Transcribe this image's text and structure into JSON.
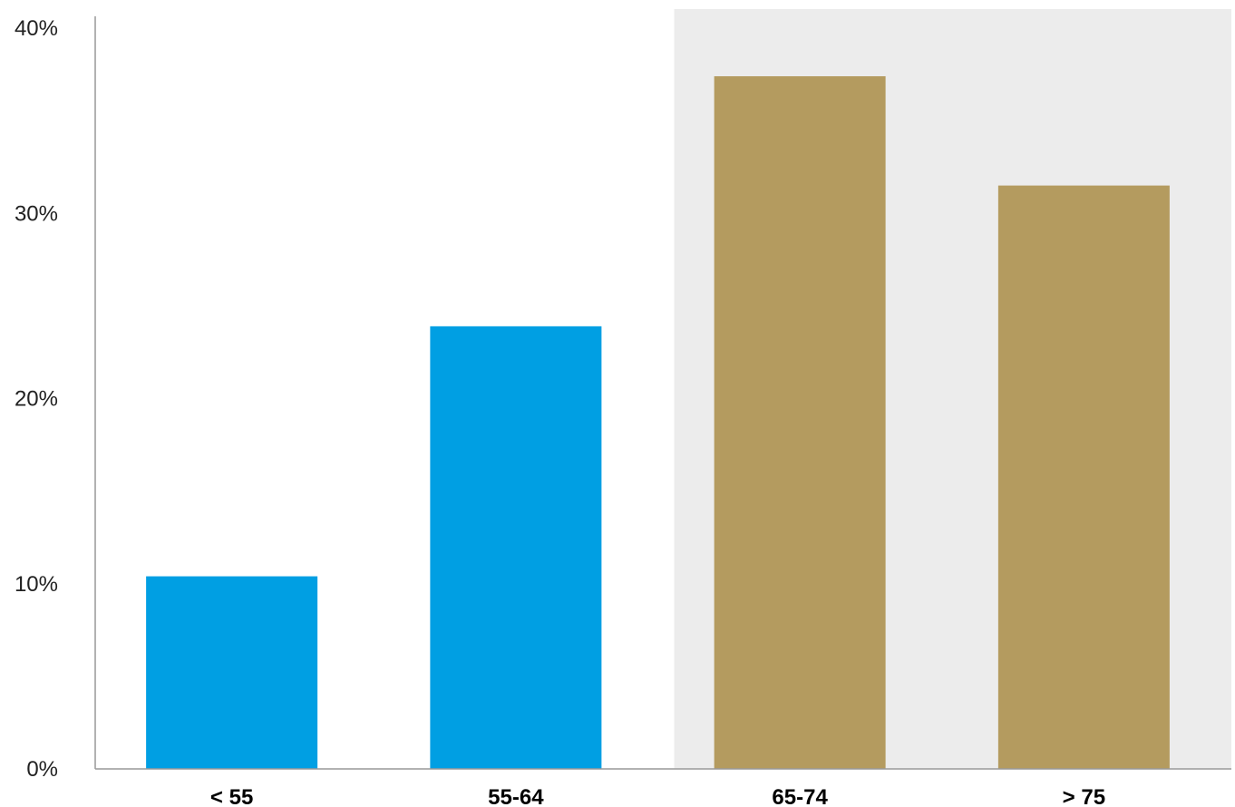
{
  "chart_data": {
    "type": "bar",
    "categories": [
      "< 55",
      "55-64",
      "65-74",
      "> 75"
    ],
    "values": [
      10.4,
      23.9,
      37.4,
      31.5
    ],
    "unit": "%",
    "ylim": [
      0,
      40
    ],
    "yticks": [
      0,
      10,
      20,
      30,
      40
    ],
    "ytick_labels": [
      "0%",
      "10%",
      "20%",
      "30%",
      "40%"
    ],
    "title": "",
    "xlabel": "",
    "ylabel": "",
    "grid": false,
    "legend": "none",
    "highlight_region_categories": [
      "65-74",
      "> 75"
    ],
    "colors": {
      "bar_default": "#009fe3",
      "bar_highlight": "#b49b5f",
      "highlight_background": "#ececec",
      "axis": "#999999"
    },
    "bar_colors": [
      "#009fe3",
      "#009fe3",
      "#b49b5f",
      "#b49b5f"
    ]
  }
}
